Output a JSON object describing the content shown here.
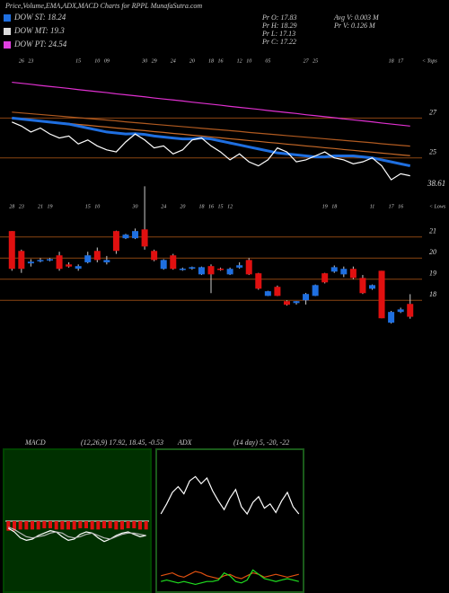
{
  "header": {
    "title": "Price,Volume,EMA,ADX,MACD Charts for RPPL MunafaSutra.com",
    "legend": [
      {
        "label": "DOW ST: 18.24",
        "color": "#1f6fe0"
      },
      {
        "label": "DOW MT: 19.3",
        "color": "#dddddd"
      },
      {
        "label": "DOW PT: 24.54",
        "color": "#e040e0"
      }
    ],
    "stats": [
      "Pr  O: 17.83",
      "Pr  H: 18.29",
      "Pr  L: 17.13",
      "Pr  C: 17.22",
      "Avg V: 0.003 M",
      "Pr  V: 0.126 M"
    ]
  },
  "chart_data": [
    {
      "type": "line",
      "side_label": "< Tops",
      "annotation": "38.61",
      "categories": [
        null,
        "26",
        "23",
        null,
        null,
        null,
        null,
        "15",
        null,
        "10",
        "09",
        null,
        null,
        null,
        "30",
        "29",
        null,
        "24",
        null,
        "20",
        null,
        "18",
        "16",
        null,
        "12",
        "10",
        null,
        "05",
        null,
        null,
        null,
        "27",
        "25",
        null,
        null,
        null,
        null,
        null,
        null,
        null,
        "18",
        "17",
        null
      ],
      "ylim": [
        23,
        30
      ],
      "yticks": [
        27,
        25
      ],
      "grid": true,
      "series": [
        {
          "name": "EMA 200",
          "color": "#e030d0",
          "values": [
            28.8,
            28.75,
            28.7,
            28.64,
            28.59,
            28.54,
            28.49,
            28.43,
            28.38,
            28.33,
            28.28,
            28.22,
            28.17,
            28.12,
            28.07,
            28.01,
            27.96,
            27.91,
            27.86,
            27.8,
            27.75,
            27.7,
            27.65,
            27.59,
            27.54,
            27.49,
            27.44,
            27.38,
            27.33,
            27.28,
            27.23,
            27.17,
            27.12,
            27.07,
            27.02,
            26.96,
            26.91,
            26.86,
            26.81,
            26.75,
            26.7,
            26.65,
            26.6
          ]
        },
        {
          "name": "EMA 100",
          "color": "#b05a20",
          "values": [
            27.3,
            27.26,
            27.22,
            27.18,
            27.14,
            27.1,
            27.06,
            27.02,
            26.98,
            26.94,
            26.9,
            26.86,
            26.81,
            26.77,
            26.73,
            26.69,
            26.65,
            26.61,
            26.57,
            26.53,
            26.49,
            26.45,
            26.41,
            26.37,
            26.33,
            26.28,
            26.24,
            26.2,
            26.16,
            26.12,
            26.08,
            26.04,
            26.0,
            25.96,
            25.92,
            25.88,
            25.84,
            25.8,
            25.76,
            25.71,
            25.67,
            25.63,
            25.59
          ]
        },
        {
          "name": "EMA 50",
          "color": "#c86a28",
          "values": [
            27.0,
            26.95,
            26.91,
            26.86,
            26.82,
            26.77,
            26.73,
            26.68,
            26.64,
            26.59,
            26.55,
            26.5,
            26.46,
            26.41,
            26.37,
            26.32,
            26.28,
            26.23,
            26.19,
            26.14,
            26.1,
            26.05,
            26.01,
            25.96,
            25.92,
            25.87,
            25.83,
            25.78,
            25.74,
            25.69,
            25.65,
            25.6,
            25.56,
            25.51,
            25.47,
            25.42,
            25.38,
            25.33,
            25.29,
            25.24,
            25.2,
            25.15,
            25.11
          ]
        },
        {
          "name": "EMA 20",
          "color": "#1f6fe0",
          "values": [
            27.0,
            26.95,
            26.9,
            26.85,
            26.8,
            26.75,
            26.7,
            26.6,
            26.5,
            26.4,
            26.3,
            26.25,
            26.2,
            26.22,
            26.18,
            26.1,
            26.05,
            26.0,
            25.95,
            25.95,
            26.0,
            25.95,
            25.85,
            25.75,
            25.65,
            25.55,
            25.45,
            25.35,
            25.25,
            25.2,
            25.15,
            25.1,
            25.05,
            25.05,
            25.1,
            25.1,
            25.1,
            25.05,
            25.0,
            24.9,
            24.8,
            24.7,
            24.6
          ]
        },
        {
          "name": "Price",
          "color": "#ffffff",
          "values": [
            26.8,
            26.6,
            26.3,
            26.5,
            26.2,
            26.0,
            26.1,
            25.7,
            25.9,
            25.6,
            25.4,
            25.3,
            25.8,
            26.2,
            25.9,
            25.5,
            25.6,
            25.2,
            25.4,
            25.9,
            26.0,
            25.6,
            25.3,
            24.9,
            25.2,
            24.8,
            24.6,
            24.9,
            25.5,
            25.3,
            24.8,
            24.9,
            25.1,
            25.3,
            25.0,
            24.9,
            24.7,
            24.8,
            25.0,
            24.6,
            23.9,
            24.2,
            24.1
          ]
        }
      ]
    },
    {
      "type": "candlestick",
      "side_label": "< Lows",
      "up_color": "#1f6fe0",
      "down_color": "#e01010",
      "categories": [
        "28",
        "23",
        null,
        "21",
        "19",
        null,
        null,
        null,
        "15",
        "10",
        null,
        null,
        null,
        "30",
        null,
        null,
        "24",
        null,
        "20",
        null,
        "18",
        "16",
        "15",
        "12",
        null,
        null,
        null,
        null,
        null,
        null,
        null,
        null,
        null,
        "19",
        "18",
        null,
        null,
        null,
        "11",
        null,
        "17",
        "16",
        null
      ],
      "ylim": [
        13.5,
        23.5
      ],
      "yticks": [
        21,
        20,
        19,
        18
      ],
      "grid": true,
      "open": [
        21.28,
        20.34,
        19.75,
        19.85,
        19.9,
        20.13,
        19.7,
        19.5,
        19.8,
        20.34,
        19.8,
        21.28,
        20.94,
        20.94,
        21.36,
        20.34,
        19.49,
        20.13,
        19.45,
        19.5,
        19.23,
        19.62,
        19.5,
        19.23,
        19.55,
        19.91,
        19.28,
        18.21,
        18.64,
        17.96,
        17.87,
        18.0,
        18.21,
        19.28,
        19.36,
        19.23,
        19.49,
        19.06,
        18.55,
        19.4,
        16.94,
        17.45,
        17.83
      ],
      "high": [
        21.28,
        20.4,
        19.95,
        20.0,
        20.0,
        20.3,
        19.8,
        19.7,
        20.3,
        20.5,
        20.1,
        21.3,
        21.15,
        21.4,
        23.4,
        20.4,
        19.95,
        20.2,
        19.55,
        19.6,
        19.6,
        19.7,
        19.55,
        19.55,
        19.8,
        20.0,
        19.3,
        18.45,
        18.7,
        18.0,
        17.97,
        18.35,
        18.75,
        19.3,
        19.65,
        19.6,
        19.6,
        19.2,
        18.75,
        19.4,
        17.5,
        17.65,
        18.29
      ],
      "low": [
        19.4,
        19.3,
        19.6,
        19.8,
        19.85,
        19.4,
        19.55,
        19.4,
        19.75,
        19.8,
        19.7,
        20.2,
        20.9,
        20.9,
        20.4,
        19.85,
        19.45,
        19.45,
        19.4,
        19.45,
        19.2,
        18.34,
        19.4,
        19.2,
        19.5,
        19.2,
        18.5,
        18.2,
        18.2,
        17.75,
        17.8,
        17.8,
        18.2,
        18.8,
        19.3,
        19.1,
        19.0,
        18.3,
        18.5,
        17.15,
        16.9,
        17.4,
        17.13
      ],
      "close": [
        19.49,
        19.49,
        19.83,
        19.91,
        19.95,
        19.49,
        19.6,
        19.62,
        20.13,
        19.91,
        19.91,
        20.34,
        21.11,
        21.28,
        20.55,
        19.91,
        19.91,
        19.49,
        19.5,
        19.57,
        19.57,
        19.23,
        19.45,
        19.49,
        19.66,
        19.23,
        18.55,
        18.43,
        18.21,
        17.79,
        17.96,
        18.3,
        18.72,
        18.85,
        19.57,
        19.49,
        19.06,
        18.34,
        18.72,
        17.15,
        17.45,
        17.57,
        17.22
      ]
    },
    {
      "type": "bar",
      "title": "MACD",
      "subtitle": "(12,26,9) 17.92, 18.45, -0.53",
      "color": "#e01010",
      "ylim": [
        -6,
        6
      ],
      "values": [
        -0.8,
        -0.8,
        -0.7,
        -0.7,
        -0.7,
        -0.7,
        -0.6,
        -0.6,
        -0.7,
        -0.7,
        -0.7,
        -0.7,
        -0.6,
        -0.6,
        -0.7,
        -0.7,
        -0.6,
        -0.6,
        -0.7,
        -0.7,
        -0.6,
        -0.6,
        -0.7,
        -0.7
      ],
      "series": [
        {
          "name": "MACD",
          "color": "#ffffff",
          "values": [
            -0.6,
            -0.9,
            -1.4,
            -1.6,
            -1.5,
            -1.2,
            -1.0,
            -0.8,
            -0.9,
            -1.3,
            -1.6,
            -1.5,
            -1.1,
            -0.9,
            -1.0,
            -1.4,
            -1.7,
            -1.5,
            -1.2,
            -1.0,
            -0.9,
            -1.1,
            -1.3,
            -1.2
          ]
        },
        {
          "name": "Signal",
          "color": "#bbbbbb",
          "values": [
            -0.5,
            -0.7,
            -1.0,
            -1.3,
            -1.4,
            -1.3,
            -1.2,
            -1.0,
            -0.9,
            -1.0,
            -1.3,
            -1.4,
            -1.3,
            -1.1,
            -1.0,
            -1.2,
            -1.4,
            -1.5,
            -1.3,
            -1.1,
            -1.0,
            -1.0,
            -1.1,
            -1.2
          ]
        }
      ]
    },
    {
      "type": "line",
      "title": "ADX",
      "subtitle": "(14 day) 5, -20, -22",
      "ylim": [
        0,
        100
      ],
      "series": [
        {
          "name": "ADX",
          "color": "#ffffff",
          "values": [
            55,
            62,
            70,
            74,
            69,
            78,
            81,
            76,
            80,
            71,
            64,
            58,
            66,
            72,
            60,
            55,
            63,
            67,
            59,
            62,
            56,
            64,
            70,
            60,
            55
          ]
        },
        {
          "name": "DI-",
          "color": "#e05010",
          "values": [
            12,
            13,
            14,
            12,
            11,
            13,
            15,
            14,
            12,
            11,
            10,
            12,
            13,
            11,
            10,
            12,
            14,
            13,
            11,
            12,
            13,
            12,
            11,
            12,
            13
          ]
        },
        {
          "name": "DI+",
          "color": "#20e020",
          "values": [
            8,
            9,
            8,
            7,
            8,
            7,
            6,
            7,
            8,
            8,
            9,
            14,
            12,
            8,
            7,
            9,
            16,
            13,
            10,
            9,
            8,
            9,
            10,
            9,
            8
          ]
        }
      ]
    }
  ]
}
